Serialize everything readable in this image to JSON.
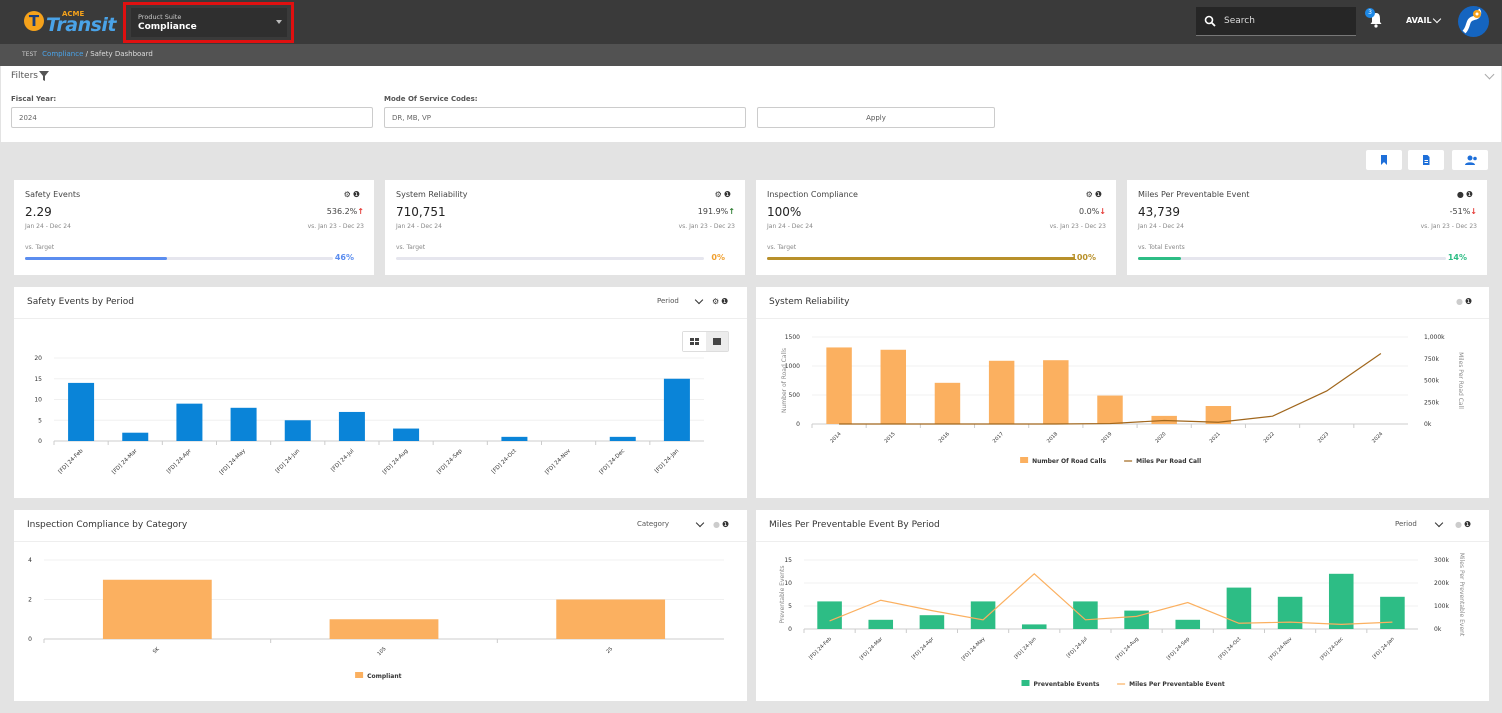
{
  "header": {
    "logo_acme": "ACME",
    "logo_name": "Transit",
    "product_suite_label": "Product Suite",
    "product_suite_value": "Compliance",
    "search_placeholder": "Search",
    "notification_count": "3",
    "user_label": "AVAIL"
  },
  "breadcrumb": {
    "env": "TEST",
    "parent": "Compliance",
    "sep": " / ",
    "current": "Safety Dashboard"
  },
  "filters": {
    "title": "Filters",
    "fiscal_year_label": "Fiscal Year:",
    "fiscal_year_value": "2024",
    "mode_label": "Mode Of Service Codes:",
    "mode_value": "DR, MB, VP",
    "apply_label": "Apply"
  },
  "kpis": [
    {
      "title": "Safety Events",
      "value": "2.29",
      "change": "536.2%",
      "arrow": "↑",
      "arrow_color": "red",
      "period": "Jan 24 - Dec 24",
      "prev": "vs. Jan 23 - Dec 23",
      "target_label": "vs. Target",
      "pct": "46%",
      "fill": 0.46,
      "color": "#5b8def"
    },
    {
      "title": "System Reliability",
      "value": "710,751",
      "change": "191.9%",
      "arrow": "↑",
      "arrow_color": "green",
      "period": "Jan 24 - Dec 24",
      "prev": "vs. Jan 23 - Dec 23",
      "target_label": "vs. Target",
      "pct": "0%",
      "fill": 0.0,
      "color": "#f0a030"
    },
    {
      "title": "Inspection Compliance",
      "value": "100%",
      "change": "0.0%",
      "arrow": "↓",
      "arrow_color": "red",
      "period": "Jan 24 - Dec 24",
      "prev": "vs. Jan 23 - Dec 23",
      "target_label": "vs. Target",
      "pct": "100%",
      "fill": 1.0,
      "color": "#b8902a"
    },
    {
      "title": "Miles Per Preventable Event",
      "value": "43,739",
      "change": "-51%",
      "arrow": "↓",
      "arrow_color": "red",
      "period": "Jan 24 - Dec 24",
      "prev": "vs. Jan 23 - Dec 23",
      "target_label": "vs. Total Events",
      "pct": "14%",
      "fill": 0.14,
      "color": "#2dbd85"
    }
  ],
  "panels": {
    "safety_events": {
      "title": "Safety Events by Period",
      "control": "Period"
    },
    "system_reliability": {
      "title": "System Reliability"
    },
    "inspection": {
      "title": "Inspection Compliance by Category",
      "control": "Category"
    },
    "miles": {
      "title": "Miles Per Preventable Event By Period",
      "control": "Period"
    }
  },
  "chart_data": [
    {
      "type": "bar",
      "title": "Safety Events by Period",
      "categories": [
        "[FD] 24-Feb",
        "[FD] 24-Mar",
        "[FD] 24-Apr",
        "[FD] 24-May",
        "[FD] 24-Jun",
        "[FD] 24-Jul",
        "[FD] 24-Aug",
        "[FD] 24-Sep",
        "[FD] 24-Oct",
        "[FD] 24-Nov",
        "[FD] 24-Dec",
        "[FD] 24-Jan"
      ],
      "values": [
        14,
        2,
        9,
        8,
        5,
        7,
        3,
        0,
        1,
        0,
        1,
        15
      ],
      "yticks": [
        0,
        5,
        10,
        15,
        20
      ],
      "ylim": [
        0,
        20
      ],
      "color": "#0a84d8"
    },
    {
      "type": "bar",
      "title": "System Reliability",
      "categories": [
        "2014",
        "2015",
        "2016",
        "2017",
        "2018",
        "2019",
        "2020",
        "2021",
        "2022",
        "2023",
        "2024"
      ],
      "series": [
        {
          "name": "Number Of Road Calls",
          "type": "bar",
          "axis": "left",
          "values": [
            1320,
            1280,
            710,
            1090,
            1100,
            490,
            140,
            310,
            0,
            0,
            0
          ],
          "color": "#fbb060"
        },
        {
          "name": "Miles Per Road Call",
          "type": "line",
          "axis": "right",
          "values": [
            0,
            0,
            0,
            0,
            0,
            5000,
            40000,
            20000,
            90000,
            380000,
            810000
          ],
          "color": "#a0661c"
        }
      ],
      "ylabel": "Number of Road Calls",
      "y2label": "Miles Per Road Call",
      "yticks": [
        0,
        500,
        1000,
        1500
      ],
      "ylim": [
        0,
        1500
      ],
      "y2ticks": [
        "0k",
        "250k",
        "500k",
        "750k",
        "1,000k"
      ],
      "y2lim": [
        0,
        1000000
      ]
    },
    {
      "type": "bar",
      "title": "Inspection Compliance by Category",
      "categories": [
        "SK",
        "10S",
        "2S"
      ],
      "series": [
        {
          "name": "Compliant",
          "values": [
            3,
            1,
            2
          ],
          "color": "#fbb060"
        }
      ],
      "yticks": [
        0,
        2,
        4
      ],
      "ylim": [
        0,
        4
      ]
    },
    {
      "type": "bar",
      "title": "Miles Per Preventable Event By Period",
      "categories": [
        "[FD] 24-Feb",
        "[FD] 24-Mar",
        "[FD] 24-Apr",
        "[FD] 24-May",
        "[FD] 24-Jun",
        "[FD] 24-Jul",
        "[FD] 24-Aug",
        "[FD] 24-Sep",
        "[FD] 24-Oct",
        "[FD] 24-Nov",
        "[FD] 24-Dec",
        "[FD] 24-Jan"
      ],
      "series": [
        {
          "name": "Preventable Events",
          "type": "bar",
          "axis": "left",
          "values": [
            6,
            2,
            3,
            6,
            1,
            6,
            4,
            2,
            9,
            7,
            12,
            7
          ],
          "color": "#2dbd85"
        },
        {
          "name": "Miles Per Preventable Event",
          "type": "line",
          "axis": "right",
          "values": [
            35000,
            125000,
            80000,
            40000,
            240000,
            40000,
            55000,
            115000,
            25000,
            30000,
            20000,
            30000
          ],
          "color": "#fbb060"
        }
      ],
      "ylabel": "Preventable Events",
      "y2label": "Miles Per Preventable Event",
      "yticks": [
        0,
        5,
        10,
        15
      ],
      "ylim": [
        0,
        15
      ],
      "y2ticks": [
        "0k",
        "100k",
        "200k",
        "300k"
      ],
      "y2lim": [
        0,
        300000
      ]
    }
  ]
}
